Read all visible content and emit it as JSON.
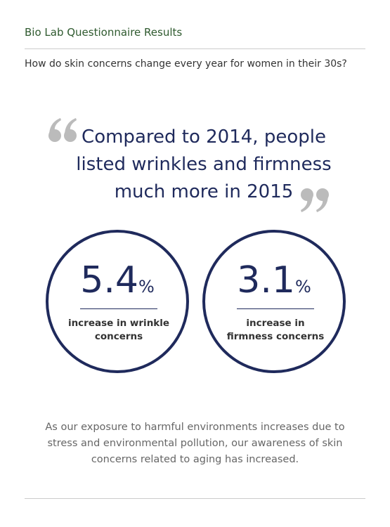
{
  "header": {
    "title": "Bio Lab Questionnaire Results",
    "subtitle": "How do skin concerns change every year for women in their 30s?"
  },
  "quote": {
    "lines": [
      "Compared to 2014, people",
      "listed wrinkles and firmness",
      "much more in 2015"
    ]
  },
  "stats": [
    {
      "value": 5.4,
      "unit": "%",
      "label": "increase in wrinkle concerns"
    },
    {
      "value": 3.1,
      "unit": "%",
      "label": "increase in firmness concerns"
    }
  ],
  "footer": {
    "text": "As our exposure to harmful environments increases due to stress and environmental pollution, our awareness of skin concerns related to aging has increased."
  }
}
